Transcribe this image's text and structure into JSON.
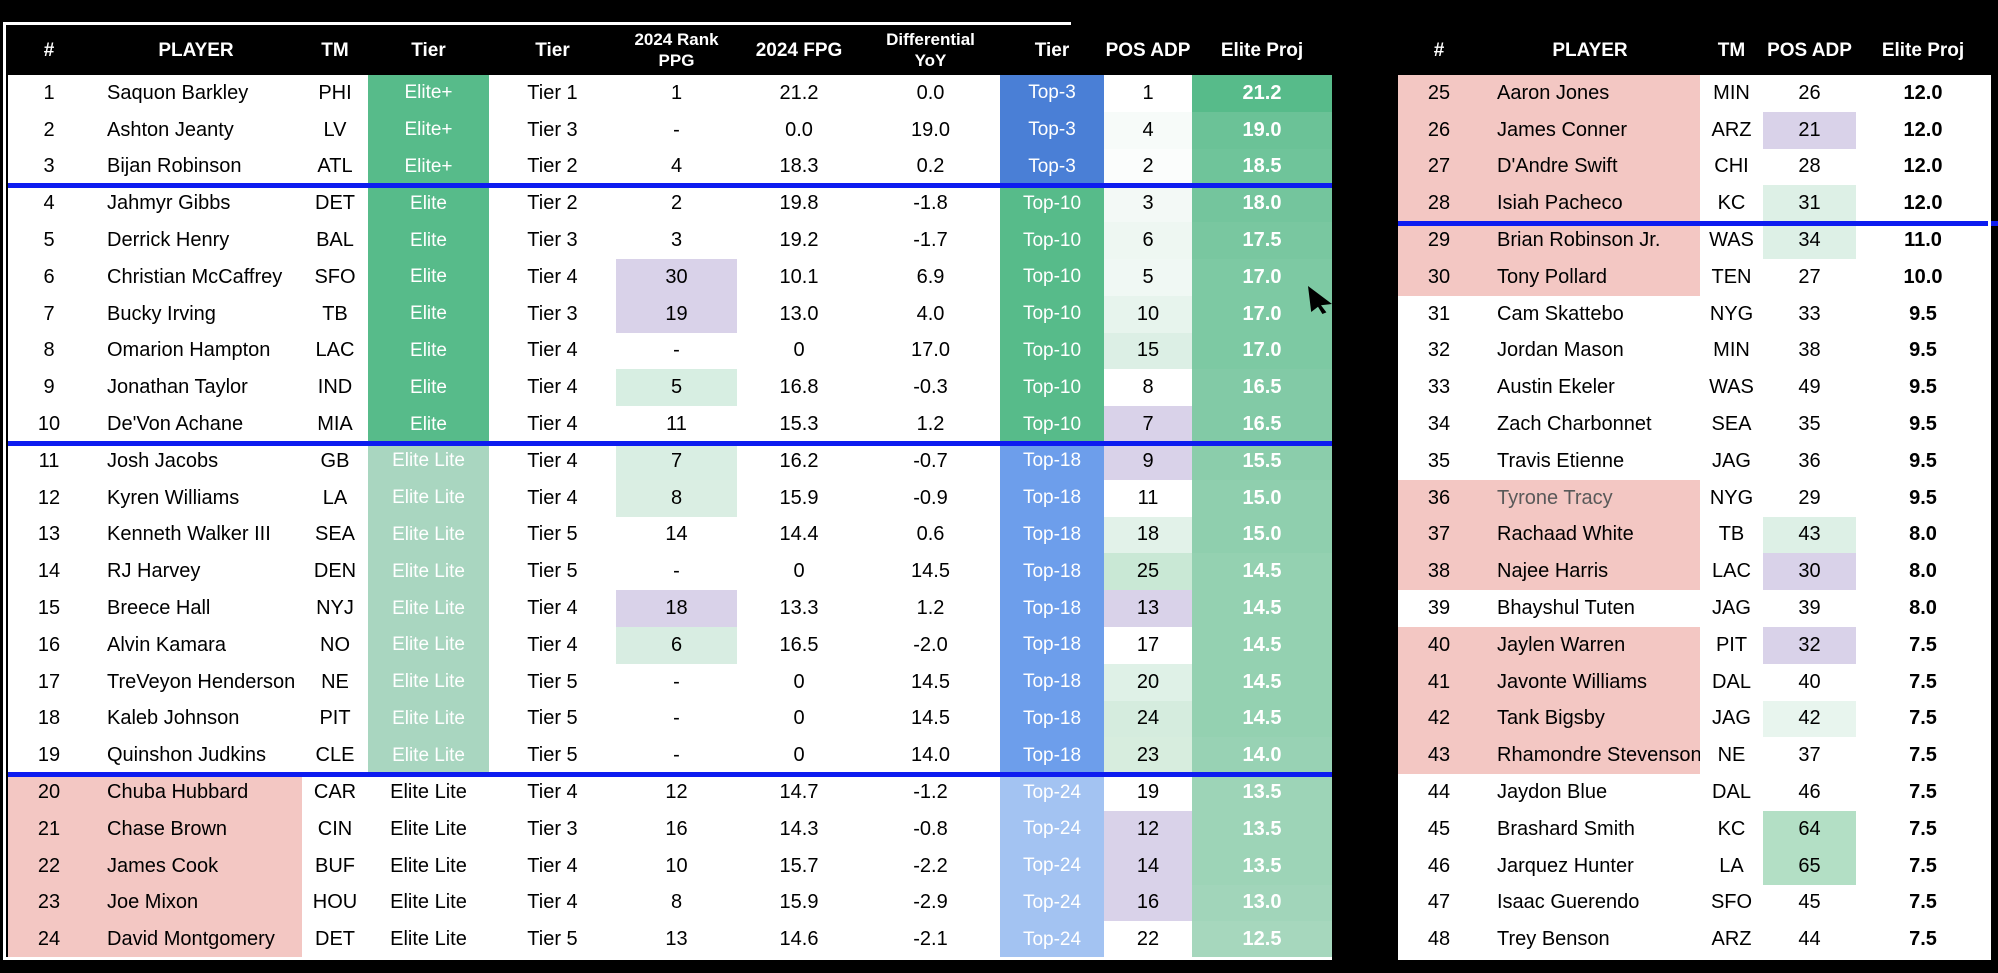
{
  "colors": {
    "canvas_bg": "#000000",
    "header_text": "#ffffff",
    "tier_solid_green": "#57bb8a",
    "tier_lite_green": "#a9d6c0",
    "top3_blue": "#4a7fd6",
    "top10_green": "#57bb8a",
    "top18_blue": "#6d9eeb",
    "top24_blue": "#a3c3f2",
    "pink_row": "#f3c7c3",
    "purple_cell": "#d9d2e9",
    "separator_blue": "#0d1cf0"
  },
  "left_table": {
    "headers": [
      "#",
      "PLAYER",
      "TM",
      "Tier",
      "Tier",
      "2024 Rank\nPPG",
      "2024 FPG",
      "Differential\nYoY",
      "Tier",
      "POS ADP",
      "Elite Proj"
    ],
    "rows": [
      {
        "num": "1",
        "player": "Saquon Barkley",
        "tm": "PHI",
        "tier": "Elite+",
        "tier_style": "solid",
        "tier_num": "Tier 1",
        "rank": "1",
        "rank_bg": "",
        "fpg": "21.2",
        "diff": "0.0",
        "top": "Top-3",
        "top_bg": "#4a7fd6",
        "adp": "1",
        "adp_bg": "",
        "proj": "21.2",
        "proj_bg": "#57bb8a",
        "pink": false
      },
      {
        "num": "2",
        "player": "Ashton Jeanty",
        "tm": "LV",
        "tier": "Elite+",
        "tier_style": "solid",
        "tier_num": "Tier 3",
        "rank": "-",
        "rank_bg": "",
        "fpg": "0.0",
        "diff": "19.0",
        "top": "Top-3",
        "top_bg": "#4a7fd6",
        "adp": "4",
        "adp_bg": "#f7fbf9",
        "proj": "19.0",
        "proj_bg": "#6bc297",
        "pink": false
      },
      {
        "num": "3",
        "player": "Bijan Robinson",
        "tm": "ATL",
        "tier": "Elite+",
        "tier_style": "solid",
        "tier_num": "Tier 2",
        "rank": "4",
        "rank_bg": "",
        "fpg": "18.3",
        "diff": "0.2",
        "top": "Top-3",
        "top_bg": "#4a7fd6",
        "adp": "2",
        "adp_bg": "#fbfdfc",
        "proj": "18.5",
        "proj_bg": "#6fc49a",
        "pink": false
      },
      {
        "num": "4",
        "player": "Jahmyr Gibbs",
        "tm": "DET",
        "tier": "Elite",
        "tier_style": "solid",
        "tier_num": "Tier 2",
        "rank": "2",
        "rank_bg": "",
        "fpg": "19.8",
        "diff": "-1.8",
        "top": "Top-10",
        "top_bg": "#57bb8a",
        "adp": "3",
        "adp_bg": "#f3f9f6",
        "proj": "18.0",
        "proj_bg": "#74c59d",
        "pink": false
      },
      {
        "num": "5",
        "player": "Derrick Henry",
        "tm": "BAL",
        "tier": "Elite",
        "tier_style": "solid",
        "tier_num": "Tier 3",
        "rank": "3",
        "rank_bg": "",
        "fpg": "19.2",
        "diff": "-1.7",
        "top": "Top-10",
        "top_bg": "#57bb8a",
        "adp": "6",
        "adp_bg": "#eef7f2",
        "proj": "17.5",
        "proj_bg": "#79c7a0",
        "pink": false
      },
      {
        "num": "6",
        "player": "Christian McCaffrey",
        "tm": "SFO",
        "tier": "Elite",
        "tier_style": "solid",
        "tier_num": "Tier 4",
        "rank": "30",
        "rank_bg": "#d9d2e9",
        "fpg": "10.1",
        "diff": "6.9",
        "top": "Top-10",
        "top_bg": "#57bb8a",
        "adp": "5",
        "adp_bg": "#f0f8f4",
        "proj": "17.0",
        "proj_bg": "#7dc9a3",
        "pink": false
      },
      {
        "num": "7",
        "player": "Bucky Irving",
        "tm": "TB",
        "tier": "Elite",
        "tier_style": "solid",
        "tier_num": "Tier 3",
        "rank": "19",
        "rank_bg": "#d9d2e9",
        "fpg": "13.0",
        "diff": "4.0",
        "top": "Top-10",
        "top_bg": "#57bb8a",
        "adp": "10",
        "adp_bg": "#e7f4ed",
        "proj": "17.0",
        "proj_bg": "#7dc9a3",
        "pink": false
      },
      {
        "num": "8",
        "player": "Omarion Hampton",
        "tm": "LAC",
        "tier": "Elite",
        "tier_style": "solid",
        "tier_num": "Tier 4",
        "rank": "-",
        "rank_bg": "",
        "fpg": "0",
        "diff": "17.0",
        "top": "Top-10",
        "top_bg": "#57bb8a",
        "adp": "15",
        "adp_bg": "#dcefe5",
        "proj": "17.0",
        "proj_bg": "#7dc9a3",
        "pink": false
      },
      {
        "num": "9",
        "player": "Jonathan Taylor",
        "tm": "IND",
        "tier": "Elite",
        "tier_style": "solid",
        "tier_num": "Tier 4",
        "rank": "5",
        "rank_bg": "#d7eee2",
        "fpg": "16.8",
        "diff": "-0.3",
        "top": "Top-10",
        "top_bg": "#57bb8a",
        "adp": "8",
        "adp_bg": "",
        "proj": "16.5",
        "proj_bg": "#82caa6",
        "pink": false
      },
      {
        "num": "10",
        "player": "De'Von Achane",
        "tm": "MIA",
        "tier": "Elite",
        "tier_style": "solid",
        "tier_num": "Tier 4",
        "rank": "11",
        "rank_bg": "",
        "fpg": "15.3",
        "diff": "1.2",
        "top": "Top-10",
        "top_bg": "#57bb8a",
        "adp": "7",
        "adp_bg": "#d9d2e9",
        "proj": "16.5",
        "proj_bg": "#82caa6",
        "pink": false
      },
      {
        "num": "11",
        "player": "Josh Jacobs",
        "tm": "GB",
        "tier": "Elite Lite",
        "tier_style": "lite",
        "tier_num": "Tier 4",
        "rank": "7",
        "rank_bg": "#d9eee3",
        "fpg": "16.2",
        "diff": "-0.7",
        "top": "Top-18",
        "top_bg": "#6d9eeb",
        "adp": "9",
        "adp_bg": "#d9d2e9",
        "proj": "15.5",
        "proj_bg": "#8bcdab",
        "pink": false
      },
      {
        "num": "12",
        "player": "Kyren Williams",
        "tm": "LA",
        "tier": "Elite Lite",
        "tier_style": "lite",
        "tier_num": "Tier 4",
        "rank": "8",
        "rank_bg": "#daeee3",
        "fpg": "15.9",
        "diff": "-0.9",
        "top": "Top-18",
        "top_bg": "#6d9eeb",
        "adp": "11",
        "adp_bg": "",
        "proj": "15.0",
        "proj_bg": "#8fcfae",
        "pink": false
      },
      {
        "num": "13",
        "player": "Kenneth Walker III",
        "tm": "SEA",
        "tier": "Elite Lite",
        "tier_style": "lite",
        "tier_num": "Tier 5",
        "rank": "14",
        "rank_bg": "",
        "fpg": "14.4",
        "diff": "0.6",
        "top": "Top-18",
        "top_bg": "#6d9eeb",
        "adp": "18",
        "adp_bg": "#e2f2e9",
        "proj": "15.0",
        "proj_bg": "#8fcfae",
        "pink": false
      },
      {
        "num": "14",
        "player": "RJ Harvey",
        "tm": "DEN",
        "tier": "Elite Lite",
        "tier_style": "lite",
        "tier_num": "Tier 5",
        "rank": "-",
        "rank_bg": "",
        "fpg": "0",
        "diff": "14.5",
        "top": "Top-18",
        "top_bg": "#6d9eeb",
        "adp": "25",
        "adp_bg": "#c9e8d5",
        "proj": "14.5",
        "proj_bg": "#94d1b1",
        "pink": false
      },
      {
        "num": "15",
        "player": "Breece Hall",
        "tm": "NYJ",
        "tier": "Elite Lite",
        "tier_style": "lite",
        "tier_num": "Tier 4",
        "rank": "18",
        "rank_bg": "#d9d2e9",
        "fpg": "13.3",
        "diff": "1.2",
        "top": "Top-18",
        "top_bg": "#6d9eeb",
        "adp": "13",
        "adp_bg": "#d9d2e9",
        "proj": "14.5",
        "proj_bg": "#94d1b1",
        "pink": false
      },
      {
        "num": "16",
        "player": "Alvin Kamara",
        "tm": "NO",
        "tier": "Elite Lite",
        "tier_style": "lite",
        "tier_num": "Tier 4",
        "rank": "6",
        "rank_bg": "#d8ede2",
        "fpg": "16.5",
        "diff": "-2.0",
        "top": "Top-18",
        "top_bg": "#6d9eeb",
        "adp": "17",
        "adp_bg": "",
        "proj": "14.5",
        "proj_bg": "#94d1b1",
        "pink": false
      },
      {
        "num": "17",
        "player": "TreVeyon Henderson",
        "tm": "NE",
        "tier": "Elite Lite",
        "tier_style": "lite",
        "tier_num": "Tier 5",
        "rank": "-",
        "rank_bg": "",
        "fpg": "0",
        "diff": "14.5",
        "top": "Top-18",
        "top_bg": "#6d9eeb",
        "adp": "20",
        "adp_bg": "#dff1e7",
        "proj": "14.5",
        "proj_bg": "#94d1b1",
        "pink": false
      },
      {
        "num": "18",
        "player": "Kaleb Johnson",
        "tm": "PIT",
        "tier": "Elite Lite",
        "tier_style": "lite",
        "tier_num": "Tier 5",
        "rank": "-",
        "rank_bg": "",
        "fpg": "0",
        "diff": "14.5",
        "top": "Top-18",
        "top_bg": "#6d9eeb",
        "adp": "24",
        "adp_bg": "#d5ecde",
        "proj": "14.5",
        "proj_bg": "#94d1b1",
        "pink": false
      },
      {
        "num": "19",
        "player": "Quinshon Judkins",
        "tm": "CLE",
        "tier": "Elite Lite",
        "tier_style": "lite",
        "tier_num": "Tier 5",
        "rank": "-",
        "rank_bg": "",
        "fpg": "0",
        "diff": "14.0",
        "top": "Top-18",
        "top_bg": "#6d9eeb",
        "adp": "23",
        "adp_bg": "#d7edde",
        "proj": "14.0",
        "proj_bg": "#98d2b4",
        "pink": false
      },
      {
        "num": "20",
        "player": "Chuba Hubbard",
        "tm": "CAR",
        "tier": "Elite Lite",
        "tier_style": "plain",
        "tier_num": "Tier 4",
        "rank": "12",
        "rank_bg": "",
        "fpg": "14.7",
        "diff": "-1.2",
        "top": "Top-24",
        "top_bg": "#a3c3f2",
        "adp": "19",
        "adp_bg": "",
        "proj": "13.5",
        "proj_bg": "#9dd4b7",
        "pink": true
      },
      {
        "num": "21",
        "player": "Chase Brown",
        "tm": "CIN",
        "tier": "Elite Lite",
        "tier_style": "plain",
        "tier_num": "Tier 3",
        "rank": "16",
        "rank_bg": "",
        "fpg": "14.3",
        "diff": "-0.8",
        "top": "Top-24",
        "top_bg": "#a3c3f2",
        "adp": "12",
        "adp_bg": "#d9d2e9",
        "proj": "13.5",
        "proj_bg": "#9dd4b7",
        "pink": true
      },
      {
        "num": "22",
        "player": "James Cook",
        "tm": "BUF",
        "tier": "Elite Lite",
        "tier_style": "plain",
        "tier_num": "Tier 4",
        "rank": "10",
        "rank_bg": "",
        "fpg": "15.7",
        "diff": "-2.2",
        "top": "Top-24",
        "top_bg": "#a3c3f2",
        "adp": "14",
        "adp_bg": "#d9d2e9",
        "proj": "13.5",
        "proj_bg": "#9dd4b7",
        "pink": true
      },
      {
        "num": "23",
        "player": "Joe Mixon",
        "tm": "HOU",
        "tier": "Elite Lite",
        "tier_style": "plain",
        "tier_num": "Tier 4",
        "rank": "8",
        "rank_bg": "",
        "fpg": "15.9",
        "diff": "-2.9",
        "top": "Top-24",
        "top_bg": "#a3c3f2",
        "adp": "16",
        "adp_bg": "#d9d2e9",
        "proj": "13.0",
        "proj_bg": "#a1d5ba",
        "pink": true
      },
      {
        "num": "24",
        "player": "David Montgomery",
        "tm": "DET",
        "tier": "Elite Lite",
        "tier_style": "plain",
        "tier_num": "Tier 5",
        "rank": "13",
        "rank_bg": "",
        "fpg": "14.6",
        "diff": "-2.1",
        "top": "Top-24",
        "top_bg": "#a3c3f2",
        "adp": "22",
        "adp_bg": "",
        "proj": "12.5",
        "proj_bg": "#a6d7bd",
        "pink": true
      }
    ]
  },
  "right_table": {
    "headers": [
      "#",
      "PLAYER",
      "TM",
      "POS ADP",
      "Elite Proj"
    ],
    "rows": [
      {
        "num": "25",
        "player": "Aaron Jones",
        "tm": "MIN",
        "adp": "26",
        "adp_bg": "",
        "proj": "12.0",
        "pink": true,
        "player_color": ""
      },
      {
        "num": "26",
        "player": "James Conner",
        "tm": "ARZ",
        "adp": "21",
        "adp_bg": "#d9d2e9",
        "proj": "12.0",
        "pink": true,
        "player_color": ""
      },
      {
        "num": "27",
        "player": "D'Andre Swift",
        "tm": "CHI",
        "adp": "28",
        "adp_bg": "",
        "proj": "12.0",
        "pink": true,
        "player_color": ""
      },
      {
        "num": "28",
        "player": "Isiah Pacheco",
        "tm": "KC",
        "adp": "31",
        "adp_bg": "#ddf0e6",
        "proj": "12.0",
        "pink": true,
        "player_color": ""
      },
      {
        "num": "29",
        "player": "Brian Robinson Jr.",
        "tm": "WAS",
        "adp": "34",
        "adp_bg": "#ddf0e6",
        "proj": "11.0",
        "pink": true,
        "player_color": ""
      },
      {
        "num": "30",
        "player": "Tony Pollard",
        "tm": "TEN",
        "adp": "27",
        "adp_bg": "",
        "proj": "10.0",
        "pink": true,
        "player_color": ""
      },
      {
        "num": "31",
        "player": "Cam Skattebo",
        "tm": "NYG",
        "adp": "33",
        "adp_bg": "",
        "proj": "9.5",
        "pink": false,
        "player_color": ""
      },
      {
        "num": "32",
        "player": "Jordan Mason",
        "tm": "MIN",
        "adp": "38",
        "adp_bg": "",
        "proj": "9.5",
        "pink": false,
        "player_color": ""
      },
      {
        "num": "33",
        "player": "Austin Ekeler",
        "tm": "WAS",
        "adp": "49",
        "adp_bg": "",
        "proj": "9.5",
        "pink": false,
        "player_color": ""
      },
      {
        "num": "34",
        "player": "Zach Charbonnet",
        "tm": "SEA",
        "adp": "35",
        "adp_bg": "",
        "proj": "9.5",
        "pink": false,
        "player_color": ""
      },
      {
        "num": "35",
        "player": "Travis Etienne",
        "tm": "JAG",
        "adp": "36",
        "adp_bg": "",
        "proj": "9.5",
        "pink": false,
        "player_color": ""
      },
      {
        "num": "36",
        "player": "Tyrone Tracy",
        "tm": "NYG",
        "adp": "29",
        "adp_bg": "",
        "proj": "9.5",
        "pink": true,
        "player_color": "#595959"
      },
      {
        "num": "37",
        "player": "Rachaad White",
        "tm": "TB",
        "adp": "43",
        "adp_bg": "#ddf0e6",
        "proj": "8.0",
        "pink": true,
        "player_color": ""
      },
      {
        "num": "38",
        "player": "Najee Harris",
        "tm": "LAC",
        "adp": "30",
        "adp_bg": "#d9d2e9",
        "proj": "8.0",
        "pink": true,
        "player_color": ""
      },
      {
        "num": "39",
        "player": "Bhayshul Tuten",
        "tm": "JAG",
        "adp": "39",
        "adp_bg": "",
        "proj": "8.0",
        "pink": false,
        "player_color": ""
      },
      {
        "num": "40",
        "player": "Jaylen Warren",
        "tm": "PIT",
        "adp": "32",
        "adp_bg": "#d9d2e9",
        "proj": "7.5",
        "pink": true,
        "player_color": ""
      },
      {
        "num": "41",
        "player": "Javonte Williams",
        "tm": "DAL",
        "adp": "40",
        "adp_bg": "",
        "proj": "7.5",
        "pink": true,
        "player_color": ""
      },
      {
        "num": "42",
        "player": "Tank Bigsby",
        "tm": "JAG",
        "adp": "42",
        "adp_bg": "#e8f5ee",
        "proj": "7.5",
        "pink": true,
        "player_color": ""
      },
      {
        "num": "43",
        "player": "Rhamondre Stevenson",
        "tm": "NE",
        "adp": "37",
        "adp_bg": "",
        "proj": "7.5",
        "pink": true,
        "player_color": ""
      },
      {
        "num": "44",
        "player": "Jaydon Blue",
        "tm": "DAL",
        "adp": "46",
        "adp_bg": "",
        "proj": "7.5",
        "pink": false,
        "player_color": ""
      },
      {
        "num": "45",
        "player": "Brashard Smith",
        "tm": "KC",
        "adp": "64",
        "adp_bg": "#b3dfc5",
        "proj": "7.5",
        "pink": false,
        "player_color": ""
      },
      {
        "num": "46",
        "player": "Jarquez Hunter",
        "tm": "LA",
        "adp": "65",
        "adp_bg": "#b3dfc5",
        "proj": "7.5",
        "pink": false,
        "player_color": ""
      },
      {
        "num": "47",
        "player": "Isaac Guerendo",
        "tm": "SFO",
        "adp": "45",
        "adp_bg": "",
        "proj": "7.5",
        "pink": false,
        "player_color": ""
      },
      {
        "num": "48",
        "player": "Trey Benson",
        "tm": "ARZ",
        "adp": "44",
        "adp_bg": "",
        "proj": "7.5",
        "pink": false,
        "player_color": ""
      }
    ]
  }
}
